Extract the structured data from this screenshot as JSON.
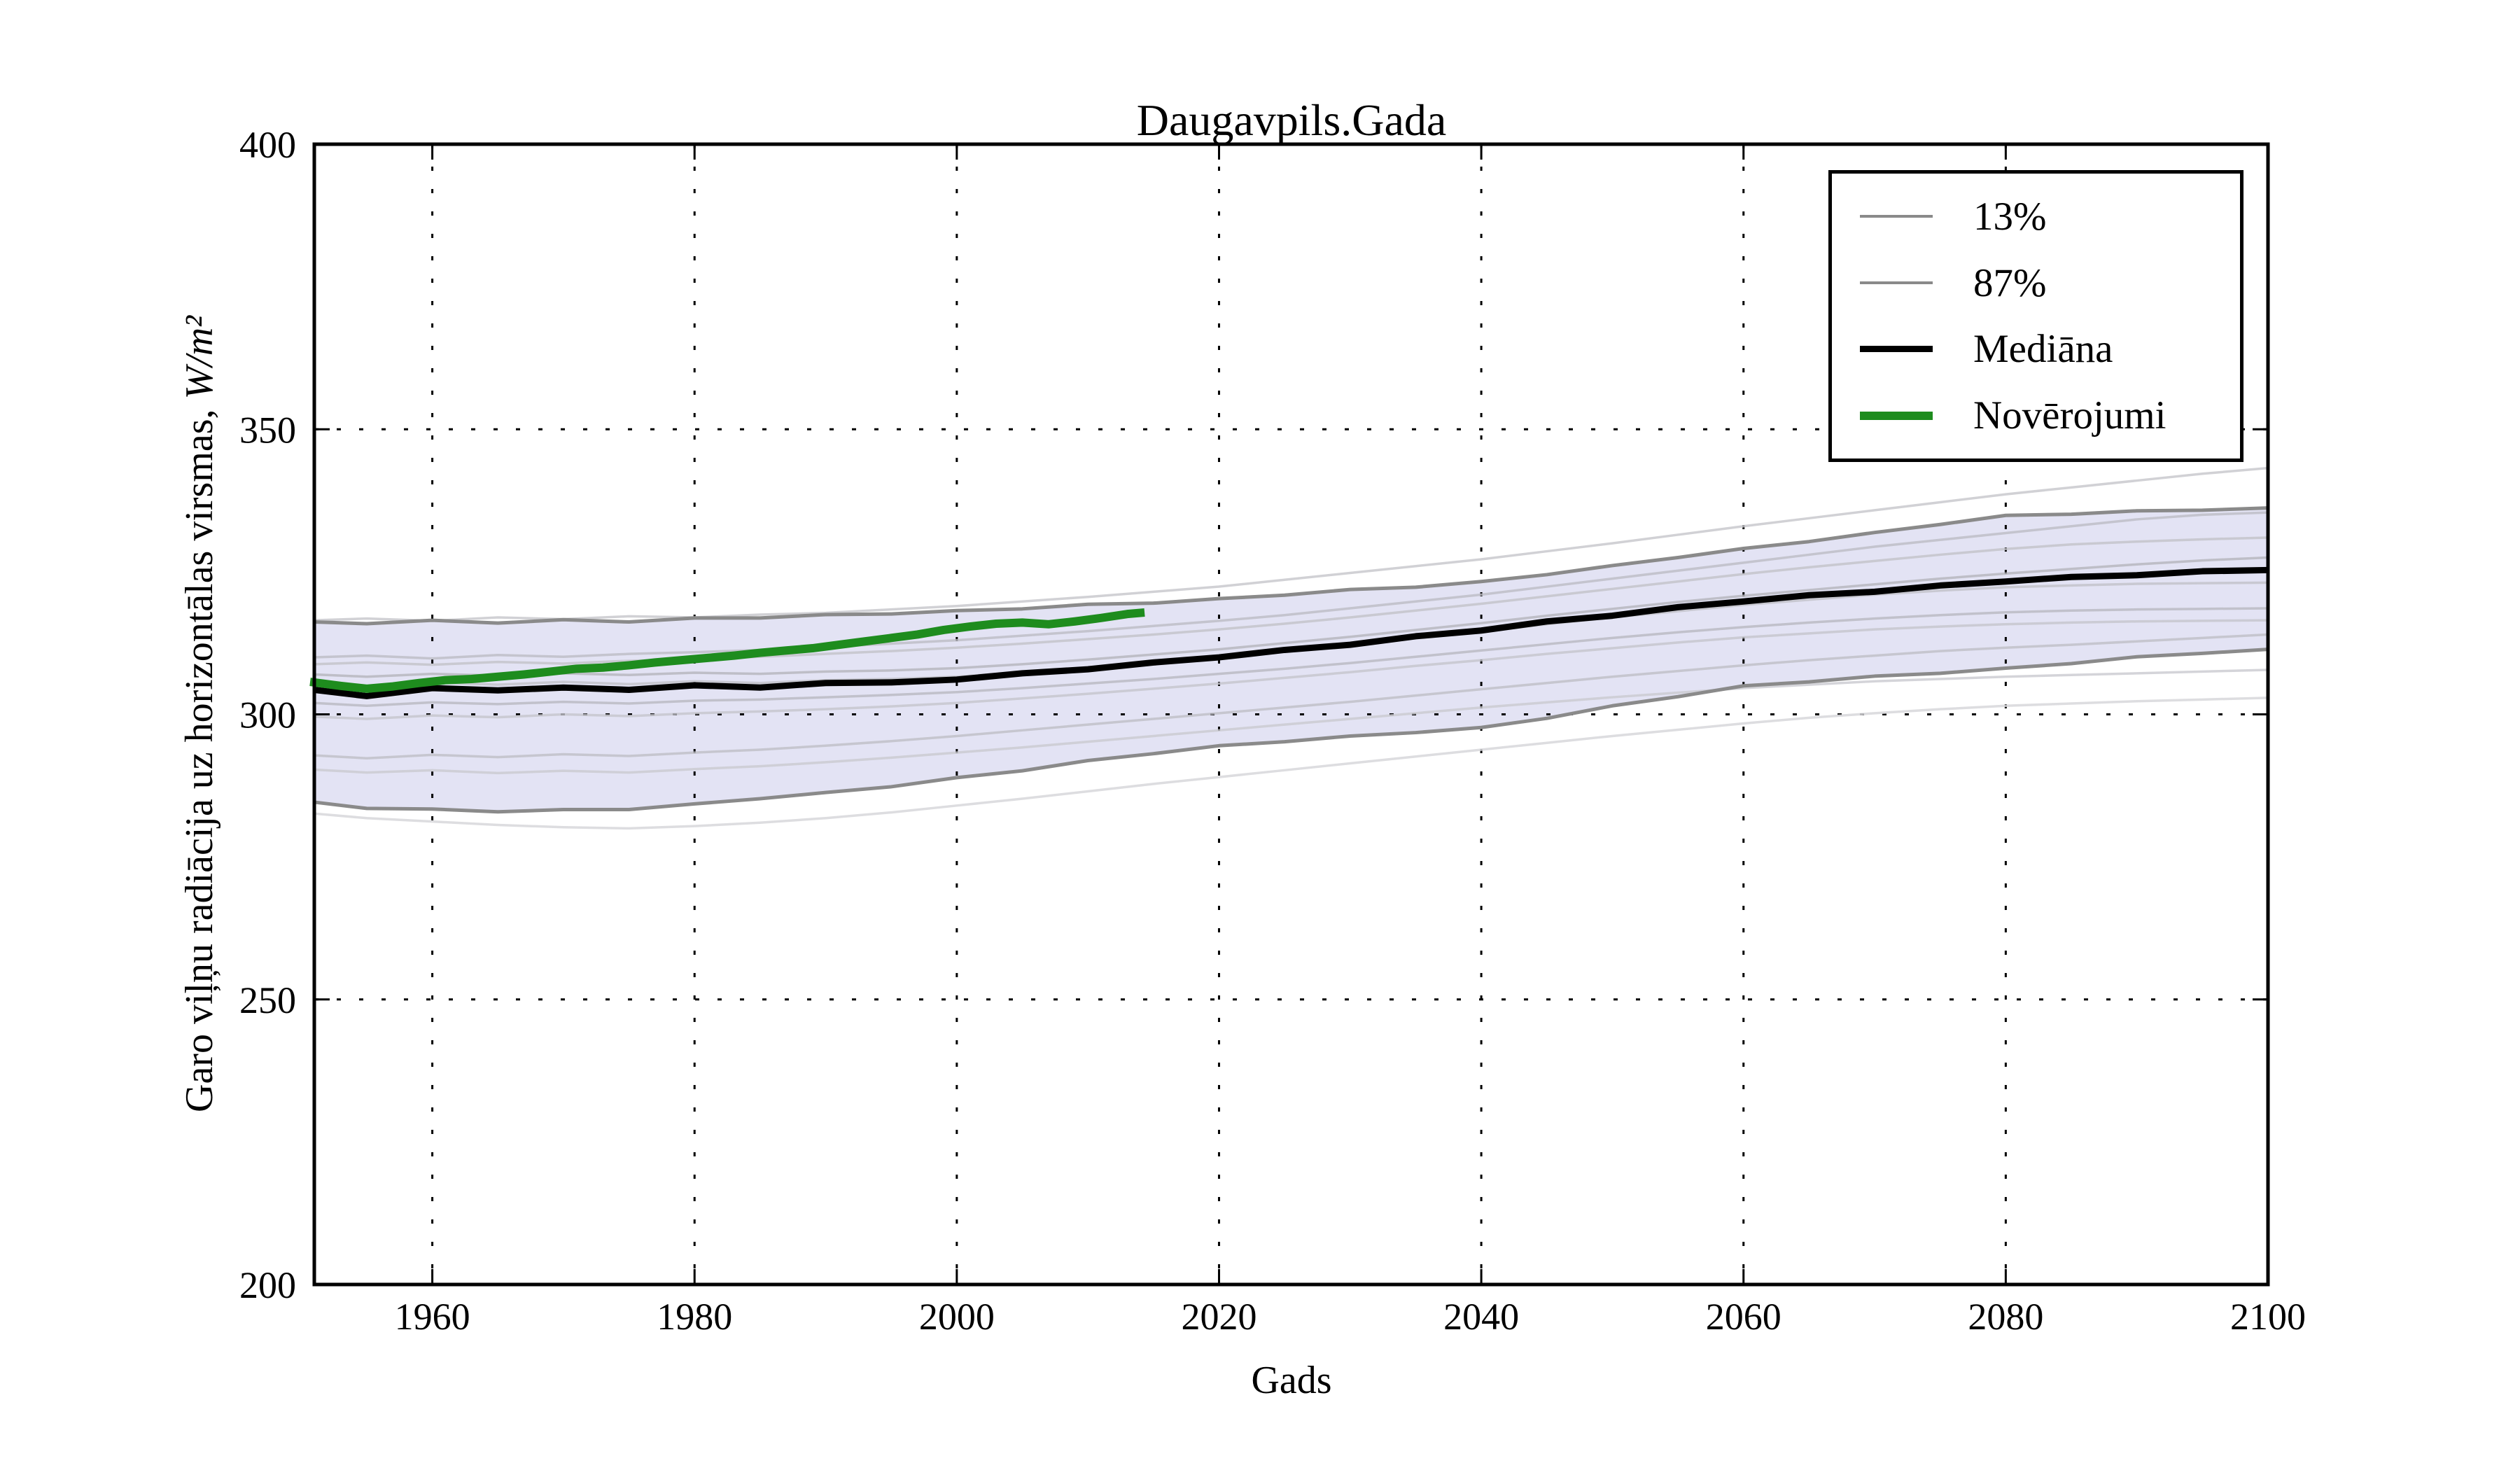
{
  "figure": {
    "title": "Daugavpils.Gada",
    "xlabel": "Gads",
    "ylabel_text": "Garo viļņu radiācija uz horizontālas virsmas, ",
    "ylabel_units": "W/m²"
  },
  "legend": {
    "position": "upper right",
    "items": [
      {
        "label": "13%",
        "color": "#8a8a8a",
        "lw": 4
      },
      {
        "label": "87%",
        "color": "#8a8a8a",
        "lw": 4
      },
      {
        "label": "Mediāna",
        "color": "#000000",
        "lw": 9
      },
      {
        "label": "Novērojumi",
        "color": "#1e8c1e",
        "lw": 12
      }
    ]
  },
  "chart_data": {
    "type": "line",
    "title": "Daugavpils.Gada",
    "xlabel": "Gads",
    "ylabel": "Garo viļņu radiācija uz horizontālas virsmas, W/m²",
    "xlim": [
      1951,
      2100
    ],
    "ylim": [
      200,
      400
    ],
    "xticks": [
      1960,
      1980,
      2000,
      2020,
      2040,
      2060,
      2080,
      2100
    ],
    "yticks": [
      200,
      250,
      300,
      350,
      400
    ],
    "grid": true,
    "legend_position": "upper right",
    "colors": {
      "band_fill": "#e3e3f4",
      "percentile": "#8a8a8a",
      "median": "#000000",
      "observations": "#1e8c1e"
    },
    "band": {
      "between": [
        "13%",
        "87%"
      ],
      "fill": "#e3e3f4"
    },
    "years": [
      1951,
      1955,
      1960,
      1965,
      1970,
      1975,
      1980,
      1985,
      1990,
      1995,
      2000,
      2005,
      2010,
      2015,
      2020,
      2025,
      2030,
      2035,
      2040,
      2045,
      2050,
      2055,
      2060,
      2065,
      2070,
      2075,
      2080,
      2085,
      2090,
      2095,
      2100
    ],
    "series": [
      {
        "name": "ensemble-1",
        "role": "ensemble",
        "color": "#c6c6ca",
        "width": 3.5,
        "opacity": 0.8,
        "values": [
          316.5,
          316.8,
          316.4,
          317.0,
          316.7,
          317.2,
          317.0,
          317.5,
          317.8,
          318.4,
          319.0,
          319.8,
          320.6,
          321.5,
          322.4,
          323.6,
          324.8,
          326.0,
          327.2,
          328.6,
          330.0,
          331.5,
          333.0,
          334.4,
          335.8,
          337.2,
          338.6,
          339.8,
          341.0,
          342.2,
          343.2
        ]
      },
      {
        "name": "ensemble-2",
        "role": "ensemble",
        "color": "#bcbcc4",
        "width": 3.5,
        "opacity": 0.8,
        "values": [
          310.0,
          310.3,
          309.8,
          310.4,
          310.1,
          310.6,
          310.9,
          311.3,
          311.8,
          312.4,
          313.0,
          313.8,
          314.6,
          315.5,
          316.4,
          317.4,
          318.6,
          319.8,
          321.0,
          322.4,
          323.8,
          325.2,
          326.6,
          328.0,
          329.4,
          330.6,
          331.8,
          333.0,
          334.2,
          335.0,
          335.4
        ]
      },
      {
        "name": "ensemble-3",
        "role": "ensemble",
        "color": "#c2c2c8",
        "width": 3.5,
        "opacity": 0.8,
        "values": [
          308.8,
          309.1,
          308.7,
          309.2,
          308.9,
          309.4,
          309.7,
          310.1,
          310.6,
          311.1,
          311.7,
          312.4,
          313.2,
          314.0,
          314.9,
          315.9,
          317.0,
          318.2,
          319.4,
          320.7,
          322.0,
          323.3,
          324.6,
          325.8,
          326.9,
          328.0,
          329.0,
          329.8,
          330.3,
          330.7,
          331.0
        ]
      },
      {
        "name": "ensemble-4",
        "role": "ensemble",
        "color": "#b4b4bc",
        "width": 3.5,
        "opacity": 0.8,
        "values": [
          307.0,
          306.6,
          307.1,
          306.8,
          307.2,
          306.9,
          307.3,
          307.1,
          307.5,
          307.7,
          308.1,
          308.8,
          309.6,
          310.5,
          311.4,
          312.5,
          313.6,
          314.8,
          316.0,
          317.3,
          318.5,
          319.7,
          320.8,
          321.8,
          322.8,
          323.8,
          324.7,
          325.5,
          326.3,
          327.0,
          327.5
        ]
      },
      {
        "name": "ensemble-5",
        "role": "ensemble",
        "color": "#c0c0c8",
        "width": 3.5,
        "opacity": 0.8,
        "values": [
          305.5,
          304.9,
          305.6,
          305.2,
          305.7,
          305.3,
          305.8,
          305.5,
          306.0,
          306.2,
          306.6,
          307.4,
          308.2,
          309.1,
          310.0,
          311.1,
          312.2,
          313.4,
          314.5,
          315.8,
          317.0,
          318.1,
          319.2,
          320.1,
          321.0,
          321.7,
          322.3,
          322.6,
          322.9,
          323.0,
          323.1
        ]
      },
      {
        "name": "ensemble-6",
        "role": "ensemble",
        "color": "#b8b8c0",
        "width": 3.5,
        "opacity": 0.8,
        "values": [
          302.0,
          301.5,
          302.1,
          301.8,
          302.2,
          301.9,
          302.4,
          302.6,
          303.0,
          303.4,
          303.9,
          304.6,
          305.4,
          306.2,
          307.1,
          308.0,
          309.0,
          310.1,
          311.2,
          312.3,
          313.4,
          314.4,
          315.3,
          316.1,
          316.8,
          317.4,
          317.9,
          318.2,
          318.4,
          318.5,
          318.6
        ]
      },
      {
        "name": "ensemble-7",
        "role": "ensemble",
        "color": "#c4c4cc",
        "width": 3.5,
        "opacity": 0.8,
        "values": [
          299.6,
          299.2,
          299.8,
          299.5,
          300.0,
          299.7,
          300.2,
          300.5,
          300.9,
          301.4,
          302.0,
          302.8,
          303.6,
          304.5,
          305.4,
          306.4,
          307.4,
          308.5,
          309.5,
          310.6,
          311.6,
          312.6,
          313.5,
          314.2,
          314.9,
          315.4,
          315.8,
          316.1,
          316.3,
          316.4,
          316.5
        ]
      },
      {
        "name": "ensemble-8",
        "role": "ensemble",
        "color": "#bebec6",
        "width": 3.5,
        "opacity": 0.8,
        "values": [
          292.8,
          292.3,
          292.9,
          292.5,
          293.0,
          292.7,
          293.3,
          293.8,
          294.5,
          295.3,
          296.2,
          297.2,
          298.2,
          299.2,
          300.2,
          301.2,
          302.2,
          303.3,
          304.4,
          305.5,
          306.6,
          307.6,
          308.6,
          309.5,
          310.3,
          311.1,
          311.7,
          312.2,
          312.8,
          313.4,
          314.0
        ]
      },
      {
        "name": "ensemble-9",
        "role": "ensemble",
        "color": "#c9c9cf",
        "width": 3.5,
        "opacity": 0.8,
        "values": [
          290.3,
          289.8,
          290.2,
          289.7,
          290.1,
          289.8,
          290.4,
          290.9,
          291.6,
          292.4,
          293.3,
          294.2,
          295.2,
          296.2,
          297.2,
          298.2,
          299.2,
          300.2,
          301.2,
          302.1,
          303.0,
          303.8,
          304.6,
          305.2,
          305.8,
          306.2,
          306.6,
          306.9,
          307.2,
          307.5,
          307.8
        ]
      },
      {
        "name": "ensemble-10",
        "role": "ensemble",
        "color": "#d7d7da",
        "width": 3.5,
        "opacity": 0.85,
        "values": [
          282.6,
          281.8,
          281.2,
          280.6,
          280.2,
          280.0,
          280.4,
          281.0,
          281.8,
          282.8,
          284.0,
          285.2,
          286.5,
          287.8,
          289.0,
          290.2,
          291.4,
          292.6,
          293.8,
          295.0,
          296.2,
          297.3,
          298.4,
          299.4,
          300.2,
          300.9,
          301.5,
          301.9,
          302.3,
          302.6,
          302.9
        ]
      },
      {
        "name": "13%",
        "role": "percentile_lower",
        "color": "#8a8a8a",
        "width": 5,
        "values": [
          284.6,
          283.5,
          283.4,
          282.9,
          283.3,
          283.3,
          284.3,
          285.2,
          286.3,
          287.3,
          288.9,
          290.1,
          291.9,
          293.1,
          294.5,
          295.2,
          296.2,
          296.8,
          297.7,
          299.3,
          301.5,
          303.1,
          305.0,
          305.7,
          306.7,
          307.2,
          308.1,
          308.9,
          310.1,
          310.7,
          311.4
        ]
      },
      {
        "name": "87%",
        "role": "percentile_upper",
        "color": "#8a8a8a",
        "width": 5,
        "values": [
          316.2,
          315.9,
          316.5,
          316.0,
          316.6,
          316.2,
          316.9,
          316.9,
          317.5,
          317.6,
          318.2,
          318.5,
          319.3,
          319.5,
          320.3,
          320.9,
          321.9,
          322.3,
          323.3,
          324.5,
          326.1,
          327.5,
          329.1,
          330.3,
          331.9,
          333.3,
          334.9,
          335.1,
          335.7,
          335.8,
          336.2
        ]
      },
      {
        "name": "Mediāna",
        "role": "median",
        "color": "#000000",
        "width": 9,
        "values": [
          304.3,
          303.2,
          304.6,
          304.2,
          304.7,
          304.3,
          305.1,
          304.7,
          305.5,
          305.6,
          306.1,
          307.2,
          307.9,
          309.1,
          310.0,
          311.3,
          312.2,
          313.7,
          314.7,
          316.3,
          317.3,
          318.8,
          319.8,
          320.9,
          321.5,
          322.6,
          323.3,
          324.1,
          324.4,
          325.1,
          325.3
        ]
      }
    ],
    "observations": {
      "name": "Novērojumi",
      "color": "#1e8c1e",
      "width": 12,
      "years": [
        1951,
        1953,
        1955,
        1957,
        1959,
        1961,
        1963,
        1965,
        1967,
        1969,
        1971,
        1973,
        1975,
        1977,
        1979,
        1981,
        1983,
        1985,
        1987,
        1989,
        1991,
        1993,
        1995,
        1997,
        1999,
        2001,
        2003,
        2005,
        2007,
        2009,
        2011,
        2013,
        2014
      ],
      "values": [
        305.6,
        305.0,
        304.5,
        304.9,
        305.5,
        306.0,
        306.2,
        306.6,
        307.0,
        307.5,
        308.0,
        308.2,
        308.6,
        309.1,
        309.5,
        309.9,
        310.3,
        310.8,
        311.2,
        311.6,
        312.2,
        312.8,
        313.4,
        314.0,
        314.8,
        315.4,
        315.9,
        316.1,
        315.8,
        316.3,
        316.9,
        317.6,
        317.8
      ]
    }
  }
}
